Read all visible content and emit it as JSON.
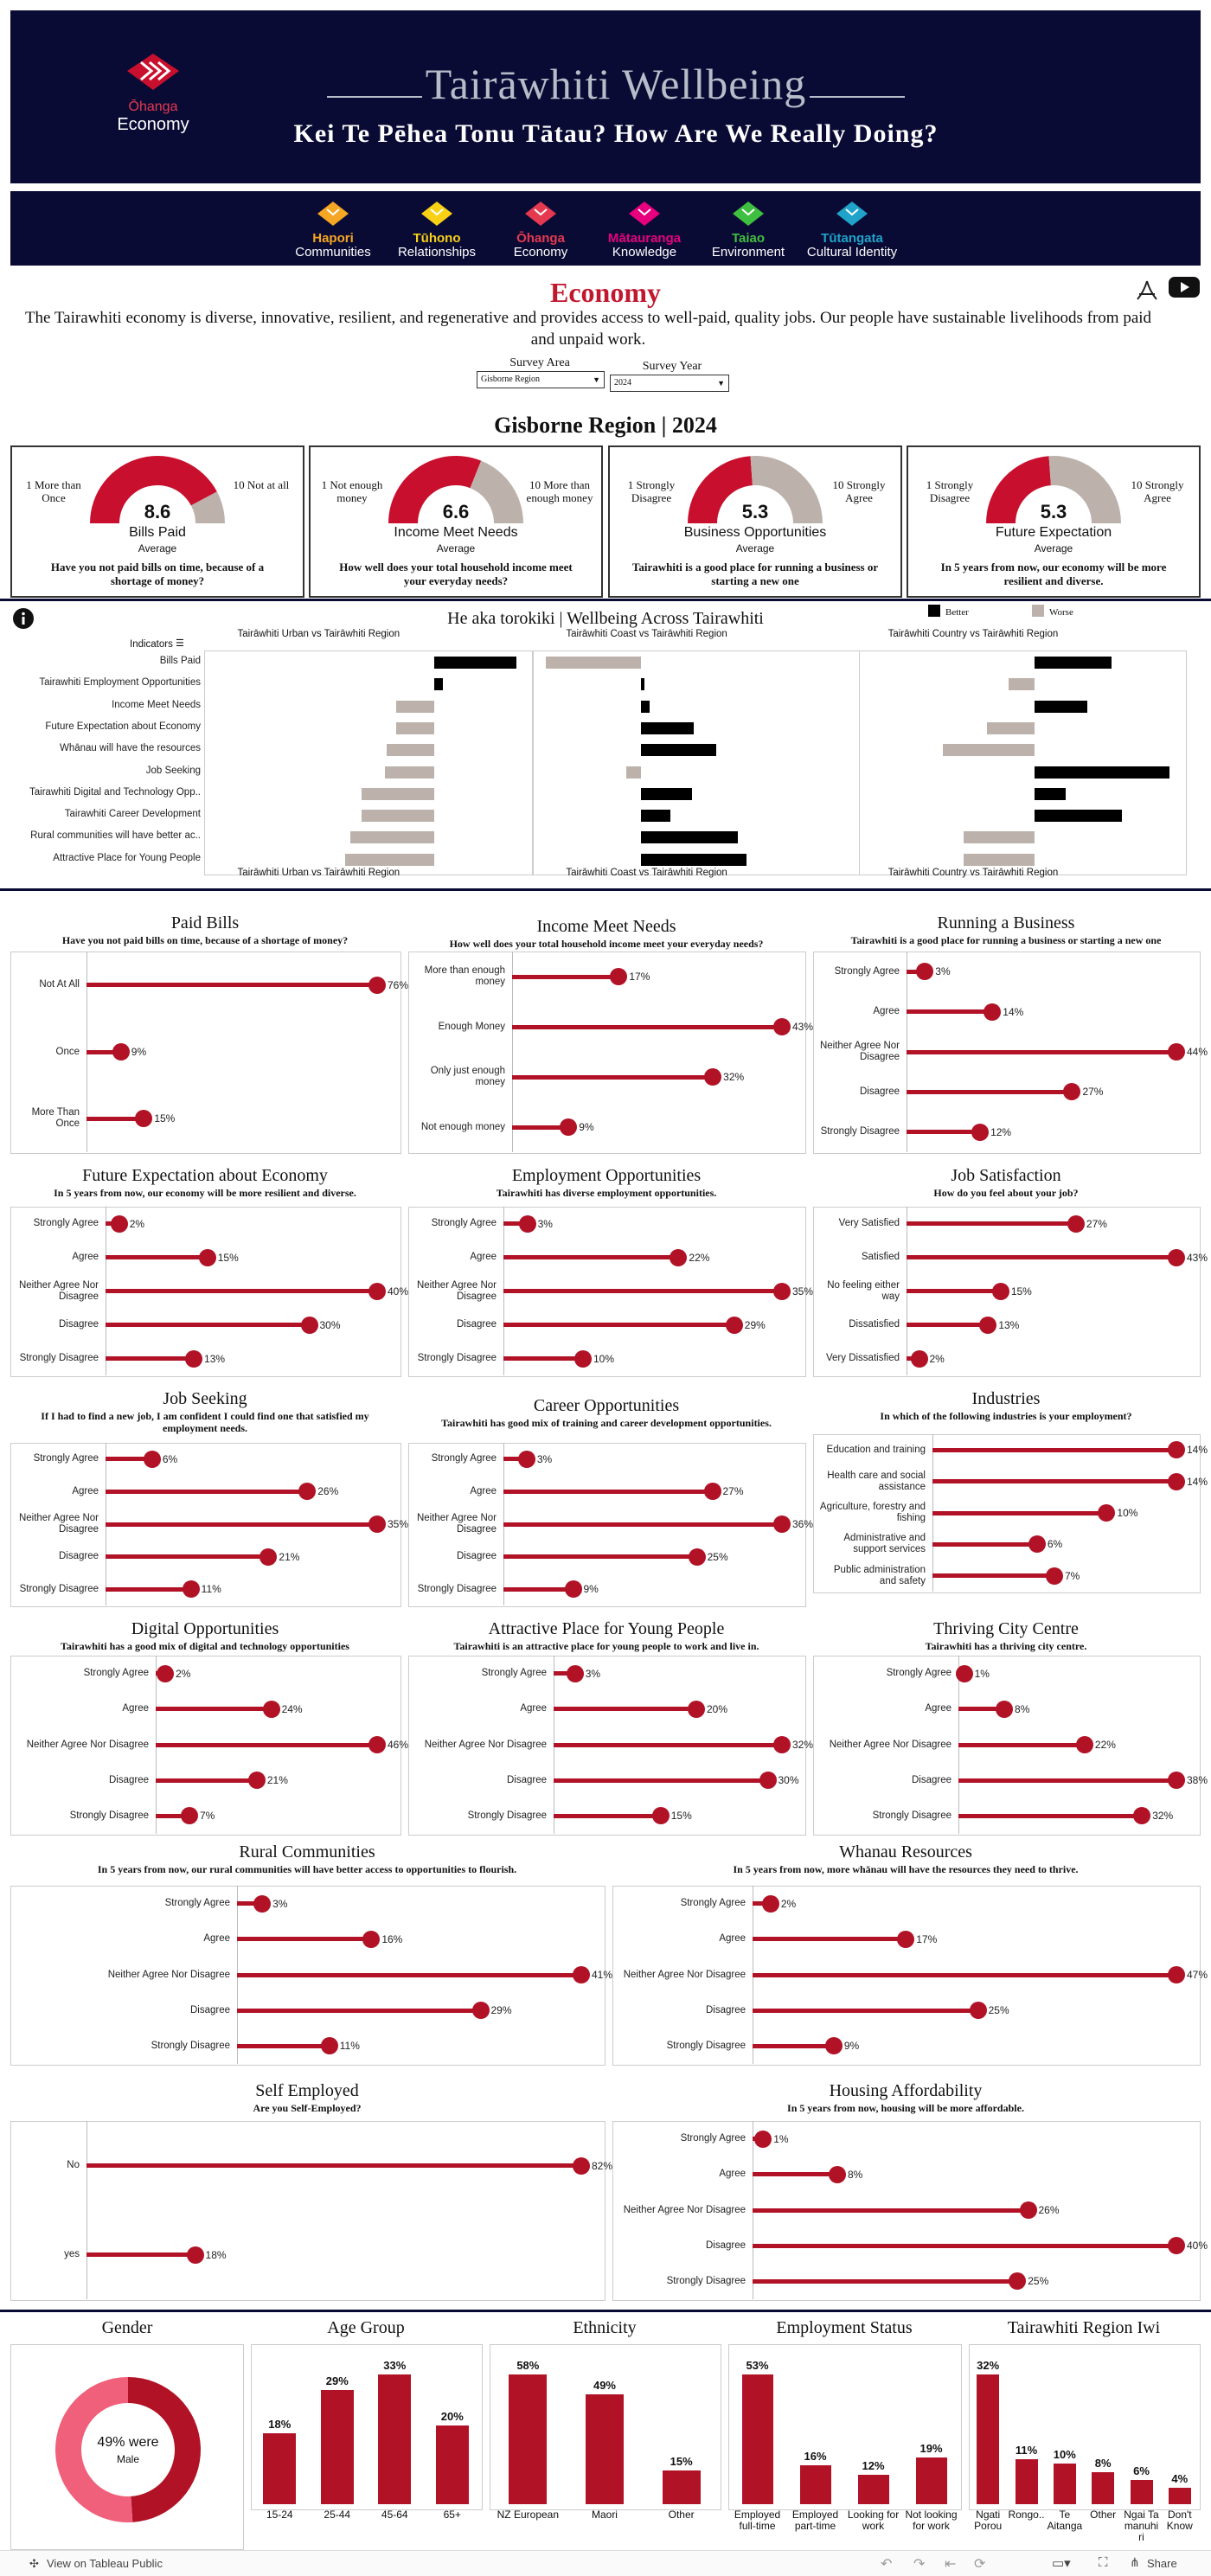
{
  "header": {
    "logo_line1": "Ōhanga",
    "logo_line2": "Economy",
    "title": "Tairāwhiti Wellbeing",
    "subtitle": "Kei Te Pēhea Tonu Tātau? How Are We Really Doing?"
  },
  "nav": [
    {
      "maori": "Hapori",
      "english": "Communities",
      "color": "#f5a623"
    },
    {
      "maori": "Tūhono",
      "english": "Relationships",
      "color": "#f8d117"
    },
    {
      "maori": "Ōhanga",
      "english": "Economy",
      "color": "#e53950"
    },
    {
      "maori": "Mātauranga",
      "english": "Knowledge",
      "color": "#e6007e"
    },
    {
      "maori": "Taiao",
      "english": "Environment",
      "color": "#3fbf3f"
    },
    {
      "maori": "Tūtangata",
      "english": "Cultural Identity",
      "color": "#1fa3c9"
    }
  ],
  "economy": {
    "title": "Economy",
    "description": "The Tairawhiti economy is diverse, innovative, resilient, and regenerative and provides access to well-paid, quality jobs. Our people have sustainable livelihoods from paid and unpaid work."
  },
  "filters": {
    "area_label": "Survey Area",
    "area_value": "Gisborne Region",
    "year_label": "Survey Year",
    "year_value": "2024"
  },
  "region_title": "Gisborne  Region  |  2024",
  "kpis": [
    {
      "value": "8.6",
      "score": 8.6,
      "name": "Bills Paid",
      "avg": "Average",
      "left": "1 More than Once",
      "right": "10 Not at all",
      "question": "Have you not paid bills on time, because of a shortage of money?"
    },
    {
      "value": "6.6",
      "score": 6.6,
      "name": "Income Meet Needs",
      "avg": "Average",
      "left": "1 Not enough money",
      "right": "10 More than enough money",
      "question": "How well does your total household income meet your everyday needs?"
    },
    {
      "value": "5.3",
      "score": 5.3,
      "name": "Business Opportunities",
      "avg": "Average",
      "left": "1 Strongly Disagree",
      "right": "10 Strongly Agree",
      "question": "Tairawhiti is a good place for running a business or starting a new one"
    },
    {
      "value": "5.3",
      "score": 5.3,
      "name": "Future Expectation",
      "avg": "Average",
      "left": "1 Strongly Disagree",
      "right": "10 Strongly Agree",
      "question": "In 5 years from now, our economy will be more resilient and diverse."
    }
  ],
  "indicators": {
    "title": "He aka torokiki | Wellbeing Across Tairawhiti",
    "legend_better": "Better",
    "legend_worse": "Worse",
    "header_label": "Indicators",
    "col_titles": [
      "Tairāwhiti Urban vs Tairāwhiti Region",
      "Tairāwhiti Coast vs Tairāwhiti Region",
      "Tairāwhiti Country vs Tairāwhiti Region"
    ],
    "labels": [
      "Bills Paid",
      "Tairawhiti Employment Opportunities",
      "Income Meet Needs",
      "Future Expectation about Economy",
      "Whānau will have the resources",
      "Job Seeking",
      "Tairawhiti Digital and Technology Opp..",
      "Tairawhiti Career Development",
      "Rural communities will have better ac..",
      "Attractive Place for Young People"
    ],
    "urban": [
      0.5,
      0.05,
      -0.23,
      -0.23,
      -0.29,
      -0.3,
      -0.44,
      -0.44,
      -0.51,
      -0.54
    ],
    "coast": [
      -0.58,
      0.02,
      0.05,
      0.32,
      0.46,
      -0.09,
      0.31,
      0.18,
      0.59,
      0.64
    ],
    "country": [
      0.47,
      -0.16,
      0.32,
      -0.29,
      -0.56,
      0.82,
      0.19,
      0.53,
      -0.43,
      -0.43
    ]
  },
  "surveys": [
    {
      "title": "Paid Bills",
      "question": "Have you not paid bills on time, because of a shortage of money?",
      "labels": [
        "Not At All",
        "Once",
        "More Than Once"
      ],
      "values": [
        76,
        9,
        15
      ],
      "max": 76
    },
    {
      "title": "Income Meet Needs",
      "question": "How well does your total household income meet your everyday needs?",
      "labels": [
        "More than enough money",
        "Enough Money",
        "Only just enough money",
        "Not enough money"
      ],
      "values": [
        17,
        43,
        32,
        9
      ],
      "max": 43
    },
    {
      "title": "Running a Business",
      "question": "Tairawhiti is a good place for running a business or starting a new one",
      "labels": [
        "Strongly Agree",
        "Agree",
        "Neither Agree Nor Disagree",
        "Disagree",
        "Strongly Disagree"
      ],
      "values": [
        3,
        14,
        44,
        27,
        12
      ],
      "max": 44
    },
    {
      "title": "Future Expectation about Economy",
      "question": "In 5 years from now, our economy will be more resilient and diverse.",
      "labels": [
        "Strongly Agree",
        "Agree",
        "Neither Agree Nor Disagree",
        "Disagree",
        "Strongly Disagree"
      ],
      "values": [
        2,
        15,
        40,
        30,
        13
      ],
      "max": 40
    },
    {
      "title": "Employment Opportunities",
      "question": "Tairawhiti has diverse employment opportunities.",
      "labels": [
        "Strongly Agree",
        "Agree",
        "Neither Agree Nor Disagree",
        "Disagree",
        "Strongly Disagree"
      ],
      "values": [
        3,
        22,
        35,
        29,
        10
      ],
      "max": 35
    },
    {
      "title": "Job Satisfaction",
      "question": "How do you feel about your job?",
      "labels": [
        "Very Satisfied",
        "Satisfied",
        "No feeling either way",
        "Dissatisfied",
        "Very Dissatisfied"
      ],
      "values": [
        27,
        43,
        15,
        13,
        2
      ],
      "max": 43
    },
    {
      "title": "Job Seeking",
      "question": "If I had to find a new job, I am confident I could find one that satisfied my employment needs.",
      "labels": [
        "Strongly Agree",
        "Agree",
        "Neither Agree Nor Disagree",
        "Disagree",
        "Strongly Disagree"
      ],
      "values": [
        6,
        26,
        35,
        21,
        11
      ],
      "max": 35
    },
    {
      "title": "Career Opportunities",
      "question": "Tairawhiti has good mix of training and career development opportunities.",
      "labels": [
        "Strongly Agree",
        "Agree",
        "Neither Agree Nor Disagree",
        "Disagree",
        "Strongly Disagree"
      ],
      "values": [
        3,
        27,
        36,
        25,
        9
      ],
      "max": 36
    },
    {
      "title": "Industries",
      "question": "In which of the following industries is your employment?",
      "labels": [
        "Education and training",
        "Health care and social assistance",
        "Agriculture, forestry and fishing",
        "Administrative and support services",
        "Public administration and safety"
      ],
      "values": [
        14,
        14,
        10,
        6,
        7
      ],
      "max": 14
    },
    {
      "title": "Digital Opportunities",
      "question": "Tairawhiti has a good mix of digital and technology opportunities",
      "labels": [
        "Strongly Agree",
        "Agree",
        "Neither Agree Nor Disagree",
        "Disagree",
        "Strongly Disagree"
      ],
      "values": [
        2,
        24,
        46,
        21,
        7
      ],
      "max": 46
    },
    {
      "title": "Attractive Place for Young People",
      "question": "Tairawhiti is an attractive place for young people to work and live in.",
      "labels": [
        "Strongly Agree",
        "Agree",
        "Neither Agree Nor Disagree",
        "Disagree",
        "Strongly Disagree"
      ],
      "values": [
        3,
        20,
        32,
        30,
        15
      ],
      "max": 32
    },
    {
      "title": "Thriving City Centre",
      "question": "Tairawhiti has a thriving city centre.",
      "labels": [
        "Strongly Agree",
        "Agree",
        "Neither Agree Nor Disagree",
        "Disagree",
        "Strongly Disagree"
      ],
      "values": [
        1,
        8,
        22,
        38,
        32
      ],
      "max": 38
    },
    {
      "title": "Rural Communities",
      "question": "In 5 years from now, our rural communities will have better access to opportunities to flourish.",
      "labels": [
        "Strongly Agree",
        "Agree",
        "Neither Agree Nor Disagree",
        "Disagree",
        "Strongly Disagree"
      ],
      "values": [
        3,
        16,
        41,
        29,
        11
      ],
      "max": 41
    },
    {
      "title": "Whanau Resources",
      "question": "In 5 years from now, more whānau will have the resources they need to thrive.",
      "labels": [
        "Strongly Agree",
        "Agree",
        "Neither Agree Nor Disagree",
        "Disagree",
        "Strongly Disagree"
      ],
      "values": [
        2,
        17,
        47,
        25,
        9
      ],
      "max": 47
    },
    {
      "title": "Self Employed",
      "question": "Are you Self-Employed?",
      "labels": [
        "No",
        "yes"
      ],
      "values": [
        82,
        18
      ],
      "max": 82
    },
    {
      "title": "Housing Affordability",
      "question": "In 5 years from now, housing will be more affordable.",
      "labels": [
        "Strongly Agree",
        "Agree",
        "Neither Agree Nor Disagree",
        "Disagree",
        "Strongly Disagree"
      ],
      "values": [
        1,
        8,
        26,
        40,
        25
      ],
      "max": 40
    }
  ],
  "demographics": {
    "gender": {
      "title": "Gender",
      "line1": "49% were",
      "line2": "Male",
      "male_share": 0.49,
      "male_color": "#b11226",
      "female_color": "#f0607a"
    },
    "age": {
      "title": "Age Group",
      "labels": [
        "15-24",
        "25-44",
        "45-64",
        "65+"
      ],
      "values": [
        18,
        29,
        33,
        20
      ],
      "display": [
        "18%",
        "29%",
        "33%",
        "20%"
      ]
    },
    "ethnicity": {
      "title": "Ethnicity",
      "labels": [
        "NZ European",
        "Maori",
        "Other"
      ],
      "values": [
        58,
        49,
        15
      ],
      "display": [
        "58%",
        "49%",
        "15%"
      ]
    },
    "employment": {
      "title": "Employment Status",
      "labels": [
        "Employed full-time",
        "Employed part-time",
        "Looking for work",
        "Not looking for work"
      ],
      "values": [
        53,
        16,
        12,
        19
      ],
      "display": [
        "53%",
        "16%",
        "12%",
        "19%"
      ]
    },
    "iwi": {
      "title": "Tairawhiti Region Iwi",
      "labels": [
        "Ngati Porou",
        "Rongo..",
        "Te Aitanga",
        "Other",
        "Ngai Ta manuhi ri",
        "Don't Know"
      ],
      "values": [
        32,
        11,
        10,
        8,
        6,
        4
      ],
      "display": [
        "32%",
        "11%",
        "10%",
        "8%",
        "6%",
        "4%"
      ]
    }
  },
  "footer": {
    "tableau": "View on Tableau Public",
    "share": "Share"
  },
  "colors": {
    "accent": "#b11226",
    "navy": "#0a0b35",
    "better": "#000000",
    "worse": "#bcb2ab"
  }
}
